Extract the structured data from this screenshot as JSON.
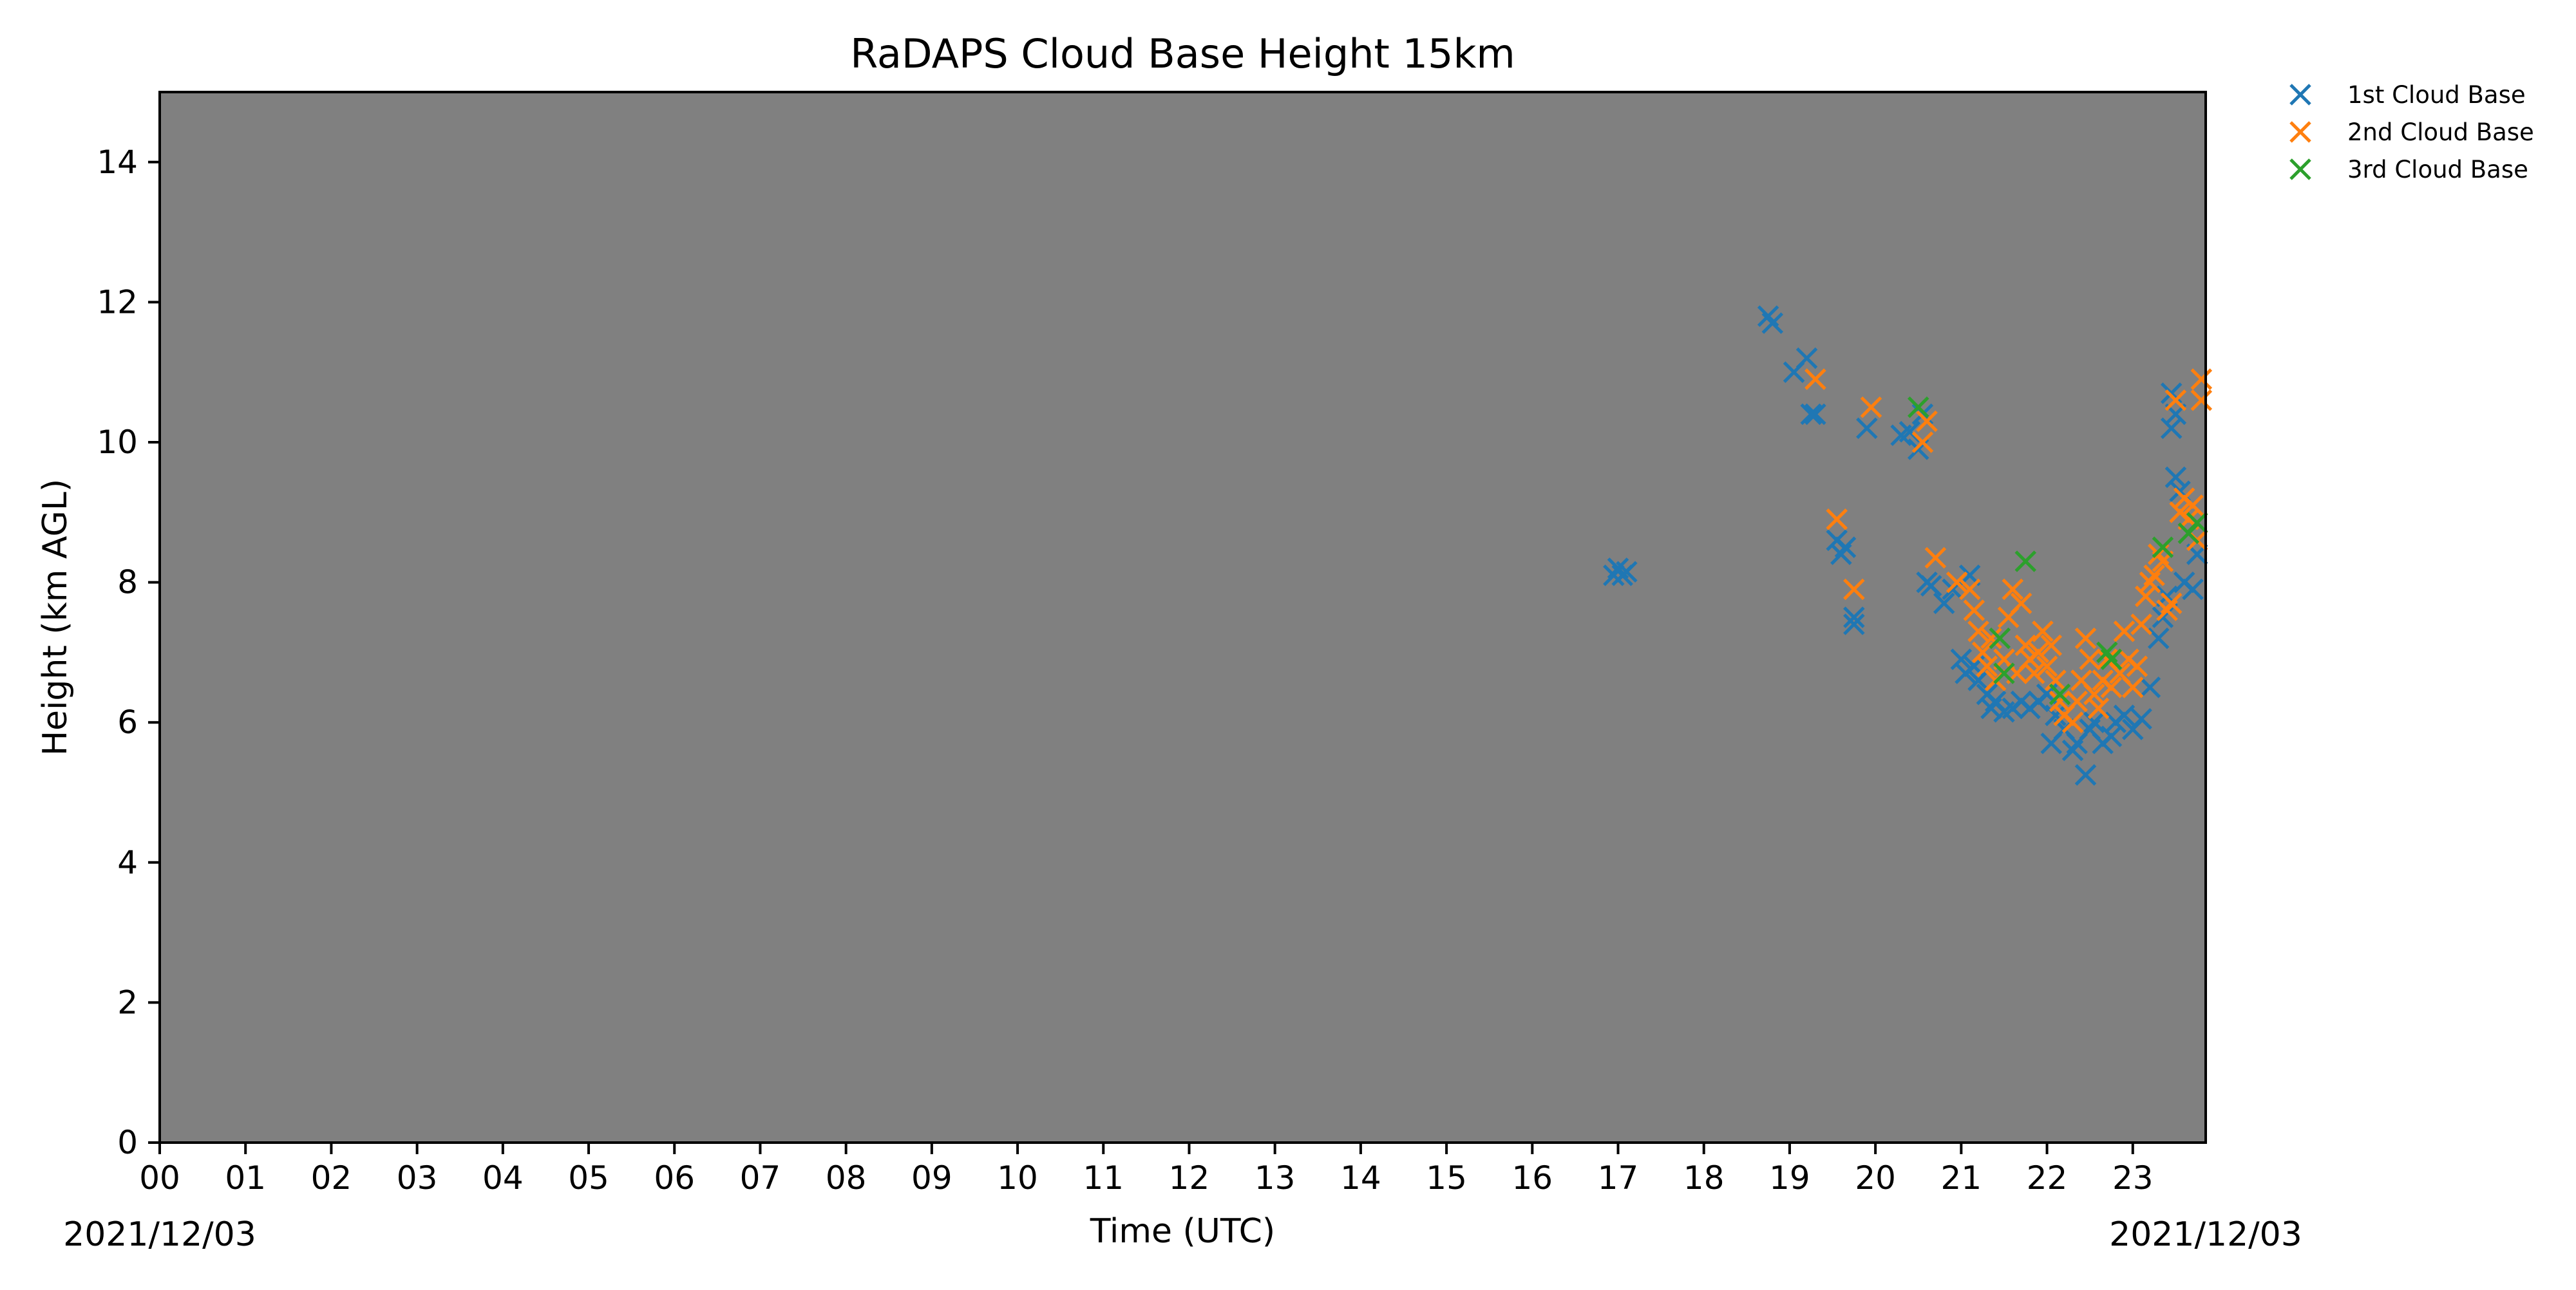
{
  "chart_data": {
    "type": "scatter",
    "title": "RaDAPS Cloud Base Height 15km",
    "xlabel": "Time (UTC)",
    "ylabel": "Height (km AGL)",
    "date_start_label": "2021/12/03",
    "date_end_label": "2021/12/03",
    "x_unit": "hour UTC",
    "xlim": [
      0,
      23.85
    ],
    "ylim": [
      0,
      15
    ],
    "x_ticks": [
      "00",
      "01",
      "02",
      "03",
      "04",
      "05",
      "06",
      "07",
      "08",
      "09",
      "10",
      "11",
      "12",
      "13",
      "14",
      "15",
      "16",
      "17",
      "18",
      "19",
      "20",
      "21",
      "22",
      "23"
    ],
    "y_ticks": [
      "0",
      "2",
      "4",
      "6",
      "8",
      "10",
      "12",
      "14"
    ],
    "plot_background": "#808080",
    "grid": false,
    "legend_position": "outside-top-right",
    "marker": "x",
    "series": [
      {
        "name": "1st Cloud Base",
        "color": "#1f77b4",
        "points": [
          [
            16.95,
            8.1
          ],
          [
            17.0,
            8.2
          ],
          [
            17.05,
            8.1
          ],
          [
            17.1,
            8.15
          ],
          [
            18.75,
            11.8
          ],
          [
            18.8,
            11.7
          ],
          [
            19.05,
            11.0
          ],
          [
            19.2,
            11.2
          ],
          [
            19.25,
            10.4
          ],
          [
            19.3,
            10.4
          ],
          [
            19.55,
            8.6
          ],
          [
            19.6,
            8.4
          ],
          [
            19.65,
            8.5
          ],
          [
            19.75,
            7.5
          ],
          [
            19.75,
            7.4
          ],
          [
            19.9,
            10.2
          ],
          [
            20.3,
            10.1
          ],
          [
            20.4,
            10.15
          ],
          [
            20.5,
            9.9
          ],
          [
            20.55,
            10.4
          ],
          [
            20.6,
            8.0
          ],
          [
            20.65,
            7.95
          ],
          [
            20.8,
            7.7
          ],
          [
            20.9,
            7.9
          ],
          [
            21.0,
            6.9
          ],
          [
            21.05,
            6.7
          ],
          [
            21.1,
            8.1
          ],
          [
            21.15,
            6.8
          ],
          [
            21.2,
            6.6
          ],
          [
            21.3,
            6.4
          ],
          [
            21.35,
            6.2
          ],
          [
            21.4,
            6.3
          ],
          [
            21.5,
            6.15
          ],
          [
            21.6,
            6.2
          ],
          [
            21.7,
            6.3
          ],
          [
            21.8,
            6.2
          ],
          [
            21.9,
            6.3
          ],
          [
            22.0,
            6.4
          ],
          [
            22.05,
            5.7
          ],
          [
            22.1,
            6.1
          ],
          [
            22.2,
            5.9
          ],
          [
            22.3,
            5.6
          ],
          [
            22.35,
            5.7
          ],
          [
            22.45,
            5.25
          ],
          [
            22.5,
            5.9
          ],
          [
            22.55,
            6.0
          ],
          [
            22.65,
            5.7
          ],
          [
            22.75,
            5.8
          ],
          [
            22.8,
            6.0
          ],
          [
            22.9,
            6.1
          ],
          [
            23.0,
            5.9
          ],
          [
            23.1,
            6.05
          ],
          [
            23.2,
            6.5
          ],
          [
            23.3,
            7.2
          ],
          [
            23.35,
            7.5
          ],
          [
            23.4,
            7.8
          ],
          [
            23.45,
            10.7
          ],
          [
            23.45,
            10.2
          ],
          [
            23.5,
            10.4
          ],
          [
            23.5,
            9.5
          ],
          [
            23.55,
            9.3
          ],
          [
            23.6,
            8.0
          ],
          [
            23.7,
            7.9
          ],
          [
            23.75,
            8.4
          ]
        ]
      },
      {
        "name": "2nd Cloud Base",
        "color": "#ff7f0e",
        "points": [
          [
            19.3,
            10.9
          ],
          [
            19.55,
            8.9
          ],
          [
            19.75,
            7.9
          ],
          [
            19.95,
            10.5
          ],
          [
            20.55,
            10.0
          ],
          [
            20.6,
            10.3
          ],
          [
            20.7,
            8.35
          ],
          [
            20.95,
            8.0
          ],
          [
            21.1,
            7.9
          ],
          [
            21.15,
            7.6
          ],
          [
            21.2,
            7.3
          ],
          [
            21.25,
            7.0
          ],
          [
            21.3,
            6.8
          ],
          [
            21.35,
            7.2
          ],
          [
            21.4,
            6.6
          ],
          [
            21.5,
            6.9
          ],
          [
            21.55,
            7.5
          ],
          [
            21.6,
            7.9
          ],
          [
            21.65,
            6.7
          ],
          [
            21.7,
            7.7
          ],
          [
            21.75,
            7.1
          ],
          [
            21.8,
            6.9
          ],
          [
            21.85,
            6.7
          ],
          [
            21.9,
            7.0
          ],
          [
            21.95,
            7.3
          ],
          [
            22.0,
            6.8
          ],
          [
            22.05,
            7.1
          ],
          [
            22.1,
            6.6
          ],
          [
            22.15,
            6.3
          ],
          [
            22.2,
            6.1
          ],
          [
            22.3,
            6.0
          ],
          [
            22.35,
            6.3
          ],
          [
            22.4,
            6.6
          ],
          [
            22.45,
            7.2
          ],
          [
            22.5,
            6.9
          ],
          [
            22.55,
            6.4
          ],
          [
            22.6,
            6.2
          ],
          [
            22.65,
            6.6
          ],
          [
            22.7,
            6.9
          ],
          [
            22.75,
            6.5
          ],
          [
            22.85,
            6.7
          ],
          [
            22.9,
            7.3
          ],
          [
            22.95,
            6.9
          ],
          [
            23.0,
            6.5
          ],
          [
            23.05,
            6.8
          ],
          [
            23.1,
            7.4
          ],
          [
            23.15,
            7.8
          ],
          [
            23.2,
            8.0
          ],
          [
            23.25,
            8.1
          ],
          [
            23.3,
            8.4
          ],
          [
            23.35,
            8.3
          ],
          [
            23.4,
            7.6
          ],
          [
            23.45,
            7.7
          ],
          [
            23.5,
            10.6
          ],
          [
            23.55,
            9.0
          ],
          [
            23.6,
            9.2
          ],
          [
            23.65,
            8.9
          ],
          [
            23.7,
            9.1
          ],
          [
            23.75,
            8.6
          ],
          [
            23.8,
            10.9
          ],
          [
            23.8,
            10.6
          ]
        ]
      },
      {
        "name": "3rd Cloud Base",
        "color": "#2ca02c",
        "points": [
          [
            20.5,
            10.5
          ],
          [
            21.45,
            7.2
          ],
          [
            21.5,
            6.7
          ],
          [
            21.75,
            8.3
          ],
          [
            22.15,
            6.4
          ],
          [
            22.7,
            7.0
          ],
          [
            22.75,
            6.9
          ],
          [
            23.35,
            8.5
          ],
          [
            23.65,
            8.7
          ],
          [
            23.75,
            8.85
          ]
        ]
      }
    ]
  }
}
